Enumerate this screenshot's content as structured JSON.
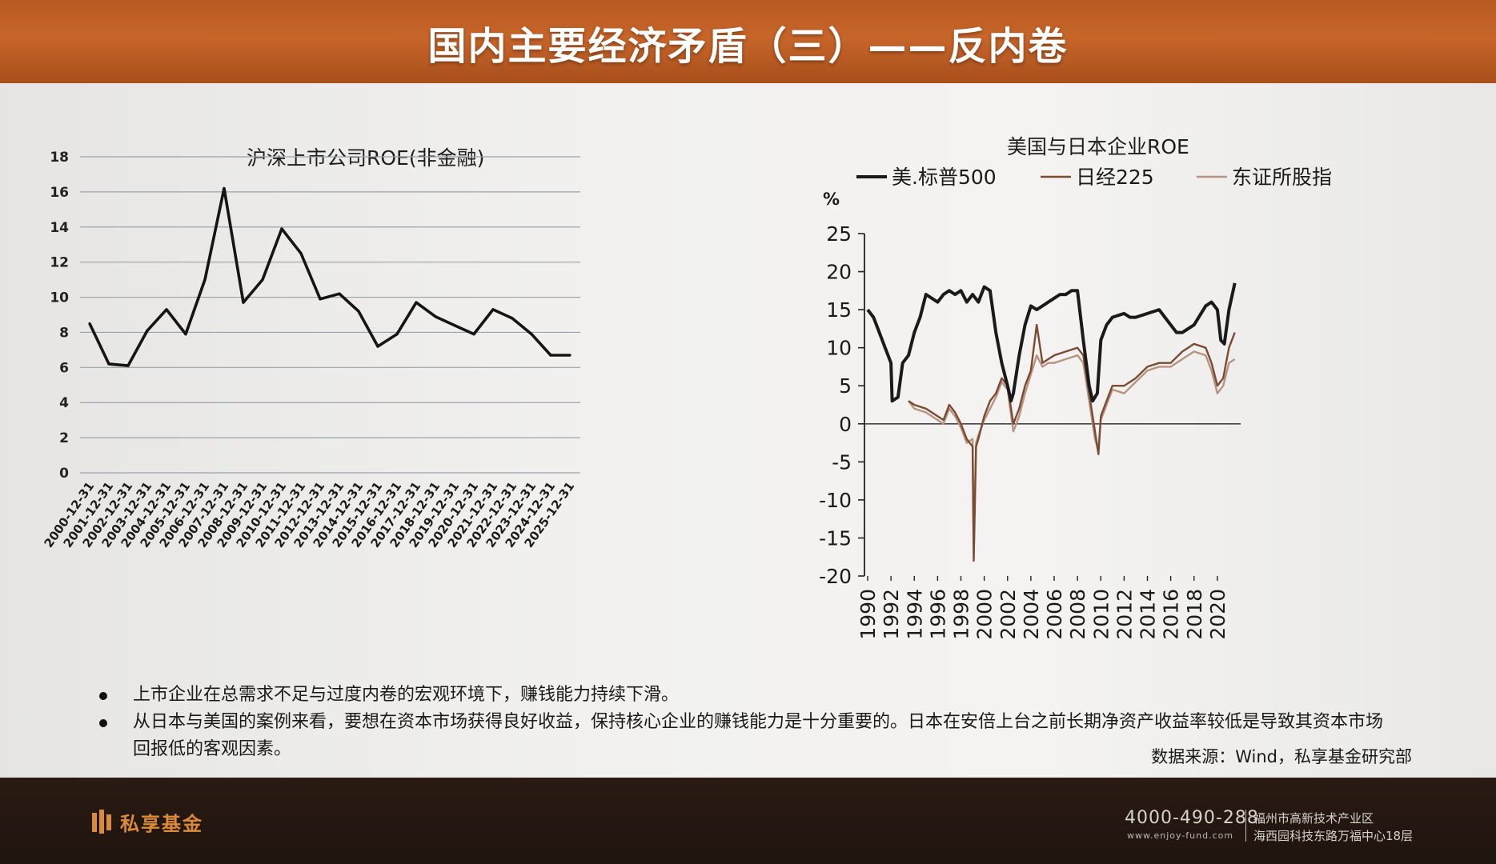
{
  "slide": {
    "title": "国内主要经济矛盾（三）——反内卷",
    "bullets": [
      "上市企业在总需求不足与过度内卷的宏观环境下，赚钱能力持续下滑。",
      "从日本与美国的案例来看，要想在资本市场获得良好收益，保持核心企业的赚钱能力是十分重要的。日本在安倍上台之前长期净资产收益率较低是导致其资本市场回报低的客观因素。"
    ],
    "source": "数据来源：Wind，私享基金研究部"
  },
  "footer": {
    "logo": "私享基金",
    "phone": "4000-490-288",
    "website": "www.enjoy-fund.com",
    "address_line1": "福州市高新技术产业区",
    "address_line2": "海西园科技东路万福中心18层"
  },
  "chart_data": [
    {
      "type": "line",
      "title": "沪深上市公司ROE(非金融)",
      "ylim": [
        0,
        18
      ],
      "yticks": [
        0,
        2,
        4,
        6,
        8,
        10,
        12,
        14,
        16,
        18
      ],
      "grid": true,
      "color": "#151515",
      "categories": [
        "2000-12-31",
        "2001-12-31",
        "2002-12-31",
        "2003-12-31",
        "2004-12-31",
        "2005-12-31",
        "2006-12-31",
        "2007-12-31",
        "2008-12-31",
        "2009-12-31",
        "2010-12-31",
        "2011-12-31",
        "2012-12-31",
        "2013-12-31",
        "2014-12-31",
        "2015-12-31",
        "2016-12-31",
        "2017-12-31",
        "2018-12-31",
        "2019-12-31",
        "2020-12-31",
        "2021-12-31",
        "2022-12-31",
        "2023-12-31",
        "2024-12-31",
        "2025-12-31"
      ],
      "values": [
        8.5,
        6.2,
        6.1,
        8.1,
        9.3,
        7.9,
        11.0,
        16.2,
        9.7,
        11.0,
        13.9,
        12.5,
        9.9,
        10.2,
        9.2,
        7.2,
        7.9,
        9.7,
        8.9,
        8.4,
        7.9,
        9.3,
        8.8,
        7.9,
        6.7,
        6.7
      ]
    },
    {
      "type": "line",
      "title": "美国与日本企业ROE",
      "ylabel": "%",
      "ylim": [
        -20,
        25
      ],
      "yticks": [
        -20,
        -15,
        -10,
        -5,
        0,
        5,
        10,
        15,
        20,
        25
      ],
      "xlim": [
        1990,
        2022
      ],
      "xticks": [
        1990,
        1992,
        1994,
        1996,
        1998,
        2000,
        2002,
        2004,
        2006,
        2008,
        2010,
        2012,
        2014,
        2016,
        2018,
        2020
      ],
      "legend_position": "top",
      "series": [
        {
          "name": "美.标普500",
          "color": "#1a1a1a",
          "x": [
            1990,
            1990.5,
            1991,
            1991.5,
            1992,
            1992.1,
            1992.6,
            1993,
            1993.5,
            1994,
            1994.5,
            1995,
            1995.5,
            1996,
            1996.5,
            1997,
            1997.5,
            1998,
            1998.5,
            1999,
            1999.5,
            2000,
            2000.5,
            2001,
            2001.5,
            2002,
            2002.3,
            2002.5,
            2003,
            2003.5,
            2004,
            2004.5,
            2005,
            2005.5,
            2006,
            2006.5,
            2007,
            2007.5,
            2008,
            2008.5,
            2009,
            2009.3,
            2009.7,
            2010,
            2010.5,
            2011,
            2012,
            2012.5,
            2013,
            2014,
            2015,
            2016,
            2016.5,
            2017,
            2018,
            2019,
            2019.5,
            2020,
            2020.3,
            2020.6,
            2021,
            2021.5
          ],
          "y": [
            15,
            14,
            12,
            10,
            8,
            3,
            3.5,
            8,
            9,
            12,
            14,
            17,
            16.5,
            16,
            17,
            17.5,
            17,
            17.5,
            16,
            17,
            16,
            18,
            17.5,
            12,
            8,
            5,
            3,
            4,
            9,
            13,
            15.5,
            15,
            15.5,
            16,
            16.5,
            17,
            17,
            17.5,
            17.5,
            11,
            5,
            3,
            4,
            11,
            13,
            14,
            14.5,
            14,
            14,
            14.5,
            15,
            13,
            12,
            12,
            13,
            15.5,
            16,
            15,
            11,
            10.5,
            15,
            18.5
          ]
        },
        {
          "name": "日经225",
          "color": "#7a4a32",
          "x": [
            1993.5,
            1994,
            1995,
            1996,
            1996.5,
            1997,
            1997.5,
            1998,
            1998.5,
            1999,
            1999.1,
            1999.3,
            1999.5,
            2000,
            2000.5,
            2001,
            2001.5,
            2002,
            2002.5,
            2003,
            2003.5,
            2004,
            2004.5,
            2005,
            2005.5,
            2006,
            2007,
            2008,
            2008.5,
            2009,
            2009.5,
            2009.8,
            2010,
            2010.5,
            2011,
            2012,
            2013,
            2014,
            2015,
            2016,
            2017,
            2018,
            2019,
            2019.5,
            2020,
            2020.5,
            2021,
            2021.5
          ],
          "y": [
            3,
            2.5,
            2,
            1,
            0.5,
            2.5,
            1.5,
            0,
            -2,
            -3,
            -18,
            -3,
            -2,
            1,
            3,
            4,
            6,
            5,
            0,
            2,
            5,
            7,
            13,
            8,
            8.5,
            9,
            9.5,
            10,
            9,
            4,
            -1,
            -4,
            1,
            3,
            5,
            5,
            6,
            7.5,
            8,
            8,
            9.5,
            10.5,
            10,
            8,
            5,
            6,
            10,
            12
          ]
        },
        {
          "name": "东证所股指",
          "color": "#b79382",
          "x": [
            1993.5,
            1994,
            1995,
            1996,
            1996.5,
            1997,
            1997.5,
            1998,
            1998.5,
            1999,
            1999.1,
            1999.3,
            1999.5,
            2000,
            2000.5,
            2001,
            2001.5,
            2002,
            2002.5,
            2003,
            2003.5,
            2004,
            2004.5,
            2005,
            2005.5,
            2006,
            2007,
            2008,
            2008.5,
            2009,
            2009.5,
            2009.8,
            2010,
            2010.5,
            2011,
            2012,
            2013,
            2014,
            2015,
            2016,
            2017,
            2018,
            2019,
            2019.5,
            2020,
            2020.5,
            2021,
            2021.5
          ],
          "y": [
            3,
            2,
            1.5,
            0.5,
            0,
            2,
            1,
            -0.5,
            -2.5,
            -2,
            -17,
            -2.5,
            -1.5,
            0.5,
            2,
            3.5,
            5.5,
            4.5,
            -1,
            1,
            4,
            6.5,
            9,
            7.5,
            8,
            8,
            8.5,
            9,
            8,
            3,
            -2,
            -3.5,
            0.5,
            2.5,
            4.5,
            4,
            5.5,
            7,
            7.5,
            7.5,
            8.5,
            9.5,
            9,
            7,
            4,
            5,
            8,
            8.5
          ]
        }
      ]
    }
  ]
}
